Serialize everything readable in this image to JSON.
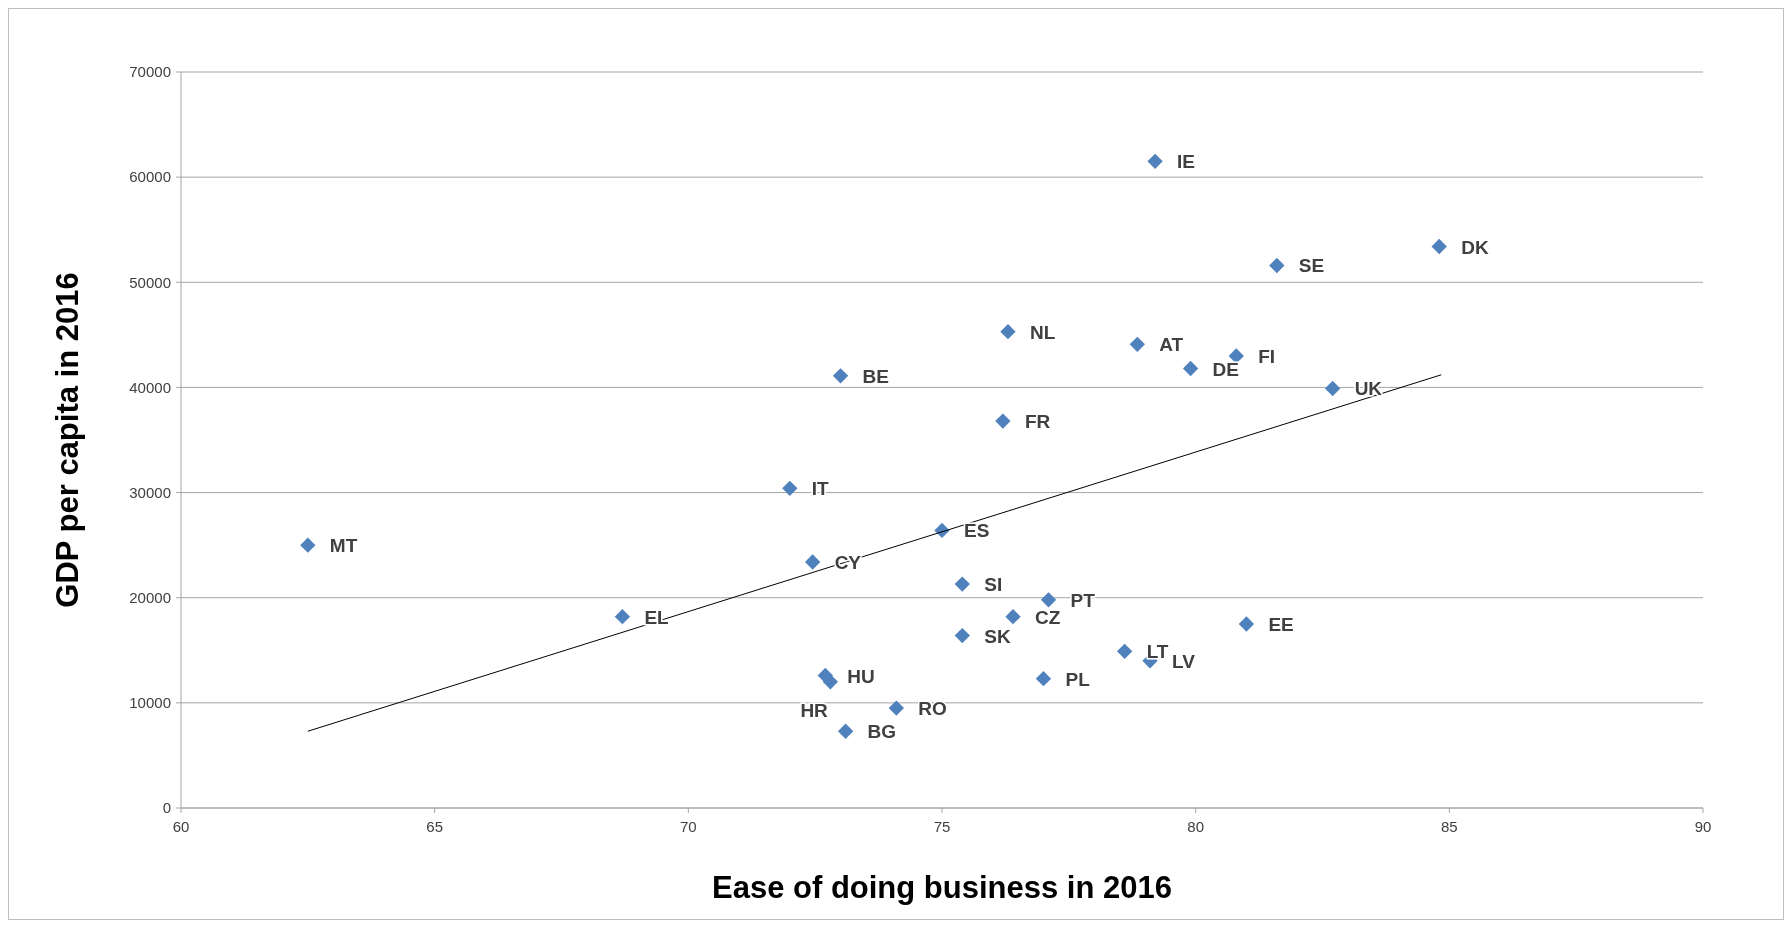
{
  "chart_data": {
    "type": "scatter",
    "xlabel": "Ease of doing business in 2016",
    "ylabel": "GDP per capita in 2016",
    "xlim": [
      60,
      90
    ],
    "xticks": [
      60,
      65,
      70,
      75,
      80,
      85,
      90
    ],
    "ylim": [
      0,
      70000
    ],
    "yticks": [
      0,
      10000,
      20000,
      30000,
      40000,
      50000,
      60000,
      70000
    ],
    "grid": "y",
    "marker": "diamond",
    "series": [
      {
        "color": "#4f81bd",
        "x": [
          79.2,
          84.8,
          81.6,
          76.3,
          78.85,
          80.8,
          79.9,
          73.0,
          82.7,
          76.2,
          72.0,
          75.0,
          62.5,
          72.45,
          75.4,
          77.1,
          76.4,
          68.7,
          81.0,
          75.4,
          78.6,
          79.1,
          72.7,
          77.0,
          72.8,
          74.1,
          73.1
        ],
        "values": [
          61500,
          53400,
          51600,
          45300,
          44100,
          43000,
          41800,
          41100,
          39900,
          36800,
          30400,
          26400,
          25000,
          23400,
          21300,
          19800,
          18200,
          18200,
          17500,
          16400,
          14900,
          14000,
          12600,
          12300,
          12000,
          9500,
          7300
        ]
      },
      {
        "type": "line",
        "color": "#000000",
        "marker": "none",
        "x": [
          62.5,
          84.84
        ],
        "values": [
          7300,
          41200
        ]
      }
    ],
    "annotations": [
      {
        "text": "IE",
        "x": 79.2,
        "y": 61500
      },
      {
        "text": "DK",
        "x": 84.8,
        "y": 53400
      },
      {
        "text": "SE",
        "x": 81.6,
        "y": 51600
      },
      {
        "text": "NL",
        "x": 76.3,
        "y": 45300
      },
      {
        "text": "AT",
        "x": 78.85,
        "y": 44100
      },
      {
        "text": "FI",
        "x": 80.8,
        "y": 43000
      },
      {
        "text": "DE",
        "x": 79.9,
        "y": 41800
      },
      {
        "text": "BE",
        "x": 73.0,
        "y": 41100
      },
      {
        "text": "UK",
        "x": 82.7,
        "y": 39900
      },
      {
        "text": "FR",
        "x": 76.2,
        "y": 36800
      },
      {
        "text": "IT",
        "x": 72.0,
        "y": 30400
      },
      {
        "text": "ES",
        "x": 75.0,
        "y": 26400
      },
      {
        "text": "MT",
        "x": 62.5,
        "y": 25000
      },
      {
        "text": "CY",
        "x": 72.45,
        "y": 23400
      },
      {
        "text": "SI",
        "x": 75.4,
        "y": 21300
      },
      {
        "text": "PT",
        "x": 77.1,
        "y": 19800
      },
      {
        "text": "CZ",
        "x": 76.4,
        "y": 18200
      },
      {
        "text": "EL",
        "x": 68.7,
        "y": 18200
      },
      {
        "text": "EE",
        "x": 81.0,
        "y": 17500
      },
      {
        "text": "SK",
        "x": 75.4,
        "y": 16400
      },
      {
        "text": "LT",
        "x": 78.6,
        "y": 14900
      },
      {
        "text": "LV",
        "x": 79.1,
        "y": 14000
      },
      {
        "text": "HU",
        "x": 72.7,
        "y": 12600
      },
      {
        "text": "PL",
        "x": 77.0,
        "y": 12300
      },
      {
        "text": "HR",
        "x": 72.8,
        "y": 12000
      },
      {
        "text": "RO",
        "x": 74.1,
        "y": 9500
      },
      {
        "text": "BG",
        "x": 73.1,
        "y": 7300
      }
    ]
  }
}
